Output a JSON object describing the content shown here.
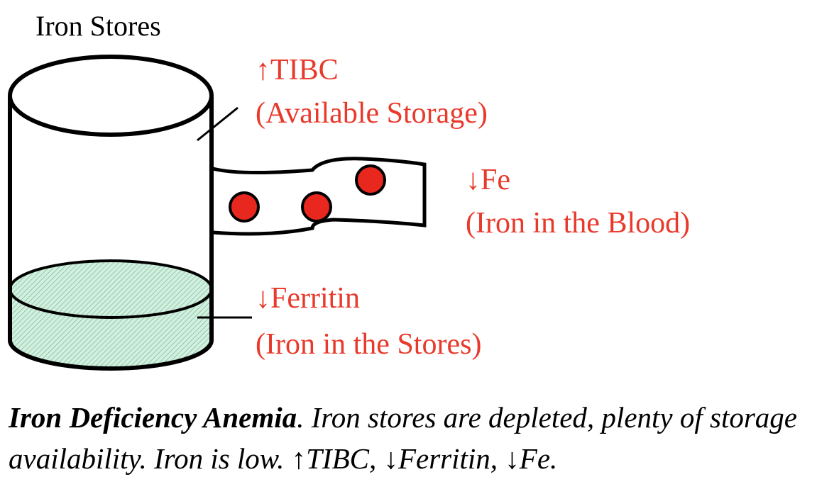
{
  "title": "Iron Stores",
  "labels": {
    "tibc_line1": "↑TIBC",
    "tibc_line2": "(Available Storage)",
    "fe_line1": "↓Fe",
    "fe_line2": "(Iron in the Blood)",
    "ferritin_line1": "↓Ferritin",
    "ferritin_line2": "(Iron in the Stores)"
  },
  "caption": {
    "bold": "Iron Deficiency Anemia",
    "rest": ". Iron stores are depleted, plenty of storage availability. Iron is low. ↑TIBC, ↓Ferritin, ↓Fe."
  },
  "colors": {
    "label_red": "#e8392b",
    "dot_red": "#e8281e",
    "fill_green": "#c9ead8",
    "outline": "#000000"
  },
  "fill_level": "low"
}
